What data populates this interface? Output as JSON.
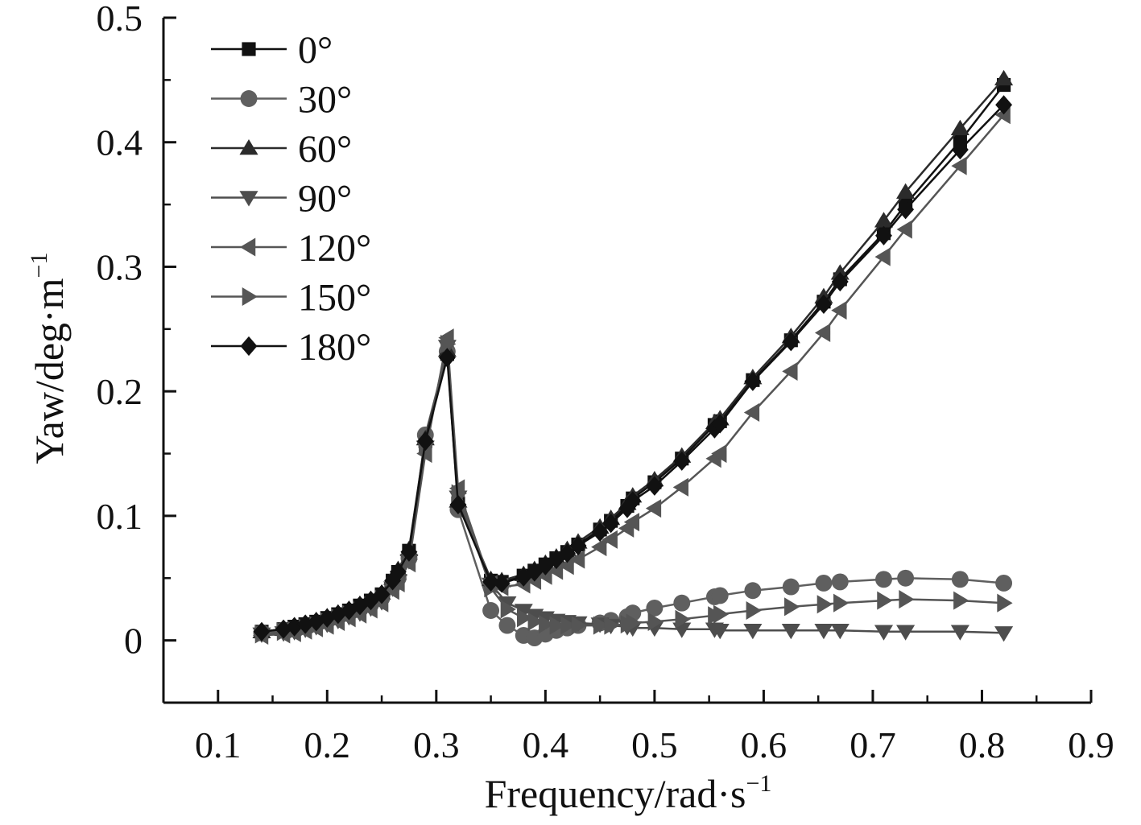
{
  "chart_data": {
    "type": "line",
    "title": "",
    "xlabel": "Frequency/rad·s",
    "xlabel_sup": "−1",
    "ylabel": "Yaw/deg·m",
    "ylabel_sup": "−1",
    "xlim": [
      0.05,
      0.9
    ],
    "ylim": [
      -0.05,
      0.5
    ],
    "xticks": [
      0.1,
      0.2,
      0.3,
      0.4,
      0.5,
      0.6,
      0.7,
      0.8,
      0.9
    ],
    "xtick_labels": [
      "0.1",
      "0.2",
      "0.3",
      "0.4",
      "0.5",
      "0.6",
      "0.7",
      "0.8",
      "0.9"
    ],
    "yticks": [
      0,
      0.1,
      0.2,
      0.3,
      0.4,
      0.5
    ],
    "ytick_labels": [
      "0",
      "0.1",
      "0.2",
      "0.3",
      "0.4",
      "0.5"
    ],
    "grid": false,
    "legend_position": "top-left",
    "series": [
      {
        "name": "0°",
        "marker": "square",
        "color": "#111111",
        "x": [
          0.14,
          0.16,
          0.17,
          0.18,
          0.19,
          0.2,
          0.21,
          0.22,
          0.23,
          0.24,
          0.25,
          0.26,
          0.265,
          0.275,
          0.29,
          0.31,
          0.32,
          0.35,
          0.36,
          0.38,
          0.39,
          0.4,
          0.41,
          0.42,
          0.43,
          0.45,
          0.46,
          0.475,
          0.48,
          0.5,
          0.525,
          0.555,
          0.56,
          0.59,
          0.625,
          0.655,
          0.67,
          0.71,
          0.73,
          0.78,
          0.82
        ],
        "y": [
          0.007,
          0.009,
          0.011,
          0.013,
          0.015,
          0.018,
          0.021,
          0.024,
          0.028,
          0.032,
          0.037,
          0.048,
          0.055,
          0.072,
          0.16,
          0.23,
          0.11,
          0.048,
          0.047,
          0.052,
          0.056,
          0.061,
          0.066,
          0.071,
          0.077,
          0.089,
          0.096,
          0.108,
          0.114,
          0.127,
          0.146,
          0.173,
          0.176,
          0.209,
          0.241,
          0.272,
          0.29,
          0.327,
          0.35,
          0.401,
          0.446
        ]
      },
      {
        "name": "30°",
        "marker": "circle",
        "color": "#5f5f5f",
        "x": [
          0.14,
          0.16,
          0.17,
          0.18,
          0.19,
          0.2,
          0.21,
          0.22,
          0.23,
          0.24,
          0.25,
          0.26,
          0.265,
          0.275,
          0.29,
          0.31,
          0.32,
          0.35,
          0.365,
          0.38,
          0.39,
          0.4,
          0.41,
          0.42,
          0.43,
          0.45,
          0.46,
          0.475,
          0.48,
          0.5,
          0.525,
          0.555,
          0.56,
          0.59,
          0.625,
          0.655,
          0.67,
          0.71,
          0.73,
          0.78,
          0.82
        ],
        "y": [
          0.006,
          0.008,
          0.009,
          0.011,
          0.013,
          0.016,
          0.019,
          0.022,
          0.025,
          0.029,
          0.034,
          0.044,
          0.05,
          0.066,
          0.165,
          0.232,
          0.105,
          0.024,
          0.012,
          0.004,
          0.002,
          0.005,
          0.008,
          0.01,
          0.012,
          0.014,
          0.016,
          0.019,
          0.022,
          0.026,
          0.03,
          0.035,
          0.036,
          0.04,
          0.043,
          0.046,
          0.047,
          0.049,
          0.05,
          0.049,
          0.046
        ]
      },
      {
        "name": "60°",
        "marker": "triangle-up",
        "color": "#2b2b2b",
        "x": [
          0.14,
          0.16,
          0.17,
          0.18,
          0.19,
          0.2,
          0.21,
          0.22,
          0.23,
          0.24,
          0.25,
          0.26,
          0.265,
          0.275,
          0.29,
          0.31,
          0.32,
          0.35,
          0.36,
          0.38,
          0.39,
          0.4,
          0.41,
          0.42,
          0.43,
          0.45,
          0.46,
          0.475,
          0.48,
          0.5,
          0.525,
          0.555,
          0.56,
          0.59,
          0.625,
          0.655,
          0.67,
          0.71,
          0.73,
          0.78,
          0.82
        ],
        "y": [
          0.007,
          0.009,
          0.011,
          0.013,
          0.016,
          0.019,
          0.022,
          0.025,
          0.029,
          0.033,
          0.038,
          0.05,
          0.057,
          0.073,
          0.162,
          0.233,
          0.112,
          0.049,
          0.048,
          0.053,
          0.057,
          0.062,
          0.067,
          0.073,
          0.079,
          0.091,
          0.098,
          0.11,
          0.116,
          0.129,
          0.148,
          0.175,
          0.178,
          0.211,
          0.244,
          0.276,
          0.295,
          0.337,
          0.36,
          0.411,
          0.451
        ]
      },
      {
        "name": "90°",
        "marker": "triangle-down",
        "color": "#4d4d4d",
        "x": [
          0.14,
          0.16,
          0.17,
          0.18,
          0.19,
          0.2,
          0.21,
          0.22,
          0.23,
          0.24,
          0.25,
          0.26,
          0.265,
          0.275,
          0.29,
          0.31,
          0.32,
          0.35,
          0.365,
          0.38,
          0.39,
          0.4,
          0.41,
          0.42,
          0.43,
          0.45,
          0.46,
          0.475,
          0.48,
          0.5,
          0.525,
          0.555,
          0.56,
          0.59,
          0.625,
          0.655,
          0.67,
          0.71,
          0.73,
          0.78,
          0.82
        ],
        "y": [
          0.005,
          0.006,
          0.007,
          0.009,
          0.011,
          0.013,
          0.016,
          0.019,
          0.022,
          0.026,
          0.031,
          0.042,
          0.048,
          0.064,
          0.155,
          0.236,
          0.115,
          0.045,
          0.03,
          0.024,
          0.02,
          0.018,
          0.016,
          0.015,
          0.014,
          0.013,
          0.012,
          0.011,
          0.01,
          0.01,
          0.009,
          0.009,
          0.008,
          0.008,
          0.008,
          0.008,
          0.008,
          0.007,
          0.007,
          0.007,
          0.006
        ]
      },
      {
        "name": "120°",
        "marker": "triangle-left",
        "color": "#555555",
        "x": [
          0.14,
          0.16,
          0.17,
          0.18,
          0.19,
          0.2,
          0.21,
          0.22,
          0.23,
          0.24,
          0.25,
          0.26,
          0.265,
          0.275,
          0.29,
          0.31,
          0.32,
          0.35,
          0.36,
          0.38,
          0.39,
          0.4,
          0.41,
          0.42,
          0.43,
          0.45,
          0.46,
          0.475,
          0.48,
          0.5,
          0.525,
          0.555,
          0.56,
          0.59,
          0.625,
          0.655,
          0.67,
          0.71,
          0.73,
          0.78,
          0.82
        ],
        "y": [
          0.004,
          0.005,
          0.006,
          0.008,
          0.01,
          0.012,
          0.015,
          0.018,
          0.021,
          0.025,
          0.03,
          0.04,
          0.046,
          0.062,
          0.15,
          0.243,
          0.122,
          0.045,
          0.043,
          0.045,
          0.048,
          0.052,
          0.056,
          0.06,
          0.065,
          0.075,
          0.081,
          0.09,
          0.095,
          0.106,
          0.123,
          0.146,
          0.15,
          0.183,
          0.216,
          0.247,
          0.265,
          0.308,
          0.33,
          0.381,
          0.422
        ]
      },
      {
        "name": "150°",
        "marker": "triangle-right",
        "color": "#555555",
        "x": [
          0.14,
          0.16,
          0.17,
          0.18,
          0.19,
          0.2,
          0.21,
          0.22,
          0.23,
          0.24,
          0.25,
          0.26,
          0.265,
          0.275,
          0.29,
          0.31,
          0.32,
          0.35,
          0.365,
          0.38,
          0.39,
          0.4,
          0.41,
          0.42,
          0.43,
          0.45,
          0.46,
          0.475,
          0.48,
          0.5,
          0.525,
          0.555,
          0.56,
          0.59,
          0.625,
          0.655,
          0.67,
          0.71,
          0.73,
          0.78,
          0.82
        ],
        "y": [
          0.005,
          0.007,
          0.008,
          0.01,
          0.012,
          0.015,
          0.018,
          0.021,
          0.024,
          0.028,
          0.033,
          0.043,
          0.049,
          0.065,
          0.158,
          0.238,
          0.118,
          0.042,
          0.025,
          0.018,
          0.015,
          0.013,
          0.012,
          0.012,
          0.012,
          0.012,
          0.012,
          0.013,
          0.014,
          0.015,
          0.017,
          0.02,
          0.021,
          0.024,
          0.027,
          0.029,
          0.03,
          0.032,
          0.033,
          0.032,
          0.03
        ]
      },
      {
        "name": "180°",
        "marker": "diamond",
        "color": "#111111",
        "x": [
          0.14,
          0.16,
          0.17,
          0.18,
          0.19,
          0.2,
          0.21,
          0.22,
          0.23,
          0.24,
          0.25,
          0.26,
          0.265,
          0.275,
          0.29,
          0.31,
          0.32,
          0.35,
          0.36,
          0.38,
          0.39,
          0.4,
          0.41,
          0.42,
          0.43,
          0.45,
          0.46,
          0.475,
          0.48,
          0.5,
          0.525,
          0.555,
          0.56,
          0.59,
          0.625,
          0.655,
          0.67,
          0.71,
          0.73,
          0.78,
          0.82
        ],
        "y": [
          0.007,
          0.009,
          0.011,
          0.013,
          0.015,
          0.018,
          0.021,
          0.024,
          0.028,
          0.032,
          0.037,
          0.048,
          0.055,
          0.071,
          0.16,
          0.227,
          0.109,
          0.047,
          0.046,
          0.051,
          0.055,
          0.06,
          0.065,
          0.07,
          0.076,
          0.087,
          0.094,
          0.106,
          0.112,
          0.124,
          0.144,
          0.17,
          0.174,
          0.208,
          0.24,
          0.27,
          0.288,
          0.325,
          0.346,
          0.394,
          0.43
        ]
      }
    ]
  }
}
